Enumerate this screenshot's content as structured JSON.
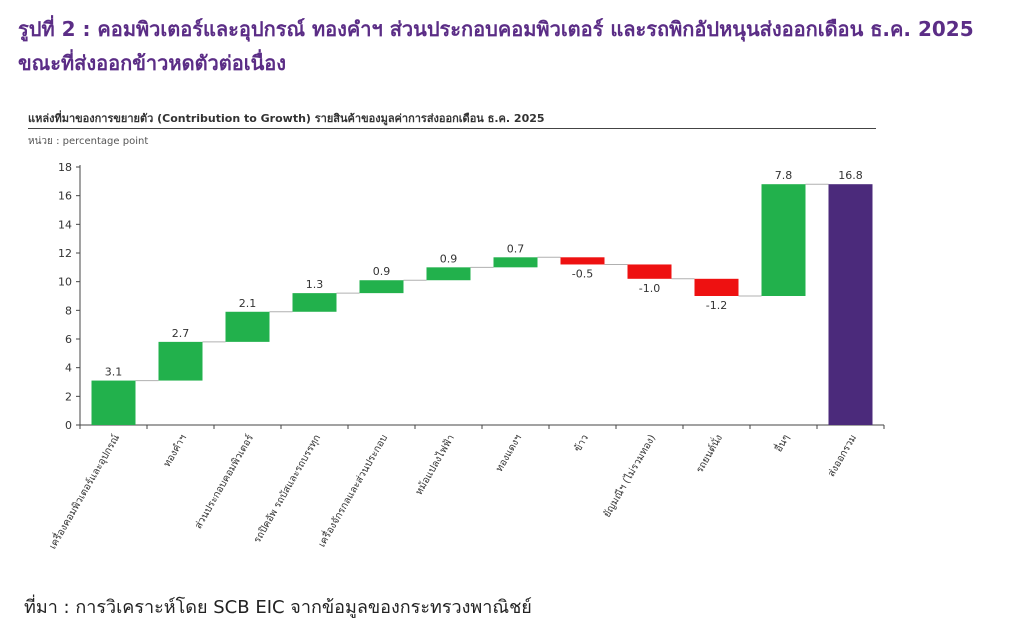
{
  "figure_title": "รูปที่ 2 : คอมพิวเตอร์และอุปกรณ์ ทองคำฯ ส่วนประกอบคอมพิวเตอร์ และรถพิกอัปหนุนส่งออกเดือน ธ.ค. 2025 ขณะที่ส่งออกข้าวหดตัวต่อเนื่อง",
  "source": "ที่มา : การวิเคราะห์โดย SCB EIC จากข้อมูลของกระทรวงพาณิชย์",
  "chart_data": {
    "type": "bar",
    "subtype": "waterfall",
    "title": "แหล่งที่มาของการขยายตัว (Contribution to Growth) รายสินค้าของมูลค่าการส่งออกเดือน ธ.ค. 2025",
    "unit_label": "หน่วย : percentage point",
    "categories": [
      "เครื่องคอมพิวเตอร์และอุปกรณ์",
      "ทองคำฯ",
      "ส่วนประกอบคอมพิวเตอร์",
      "รถปิคอัพ รถบัสและรถบรรทุก",
      "เครื่องจักรกลและส่วนประกอบ",
      "หม้อแปลงไฟฟ้า",
      "ทองแดงฯ",
      "ข้าว",
      "ยัญมณีฯ (ไม่รวมทอง)",
      "รถยนต์นั่ง",
      "อื่นๆ",
      "ส่งออกรวม"
    ],
    "values": [
      3.1,
      2.7,
      2.1,
      1.3,
      0.9,
      0.9,
      0.7,
      -0.5,
      -1.0,
      -1.2,
      7.8,
      16.8
    ],
    "value_labels": [
      "3.1",
      "2.7",
      "2.1",
      "1.3",
      "0.9",
      "0.9",
      "0.7",
      "-0.5",
      "-1.0",
      "-1.2",
      "7.8",
      "16.8"
    ],
    "total_index": 11,
    "ylim": [
      0,
      18
    ],
    "yticks": [
      "0",
      "2",
      "4",
      "6",
      "8",
      "10",
      "12",
      "14",
      "16",
      "18"
    ],
    "colors": {
      "positive": "#22b14c",
      "negative": "#ee1111",
      "total": "#4b2a7b",
      "connector": "#b0b0b0"
    }
  }
}
